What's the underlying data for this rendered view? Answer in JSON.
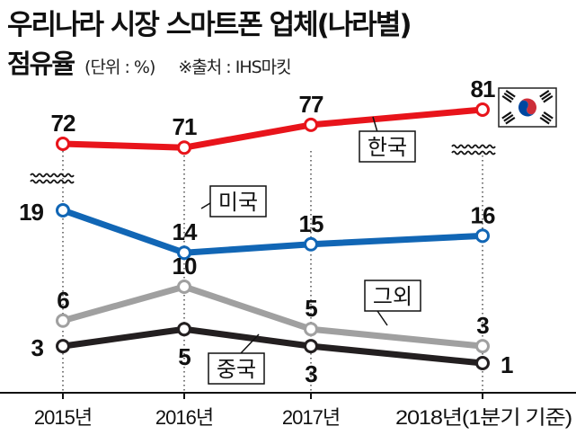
{
  "header": {
    "title": "우리나라 시장 스마트폰 업체(나라별)",
    "subtitle": "점유율",
    "unit": "(단위 : %)",
    "source": "※출처 : IHS마킷"
  },
  "chart_data": {
    "type": "line",
    "title": "우리나라 시장 스마트폰 업체(나라별) 점유율",
    "unit": "(단위 : %)",
    "source": "※출처 : IHS마킷",
    "categories": [
      "2015년",
      "2016년",
      "2017년",
      "2018년(1분기 기준)"
    ],
    "series": [
      {
        "name": "한국",
        "values": [
          72,
          71,
          77,
          81
        ],
        "color": "#e8141b",
        "flag": "south-korea-flag-icon"
      },
      {
        "name": "미국",
        "values": [
          19,
          14,
          15,
          16
        ],
        "color": "#1166b5"
      },
      {
        "name": "그외",
        "values": [
          6,
          10,
          5,
          3
        ],
        "color": "#a0a0a0"
      },
      {
        "name": "중국",
        "values": [
          3,
          5,
          3,
          1
        ],
        "color": "#231f20"
      }
    ],
    "axis_break": "between 19 and 72 (wavy break marks)",
    "grid": false,
    "value_labels": true,
    "category_guides": "dotted vertical lines"
  }
}
